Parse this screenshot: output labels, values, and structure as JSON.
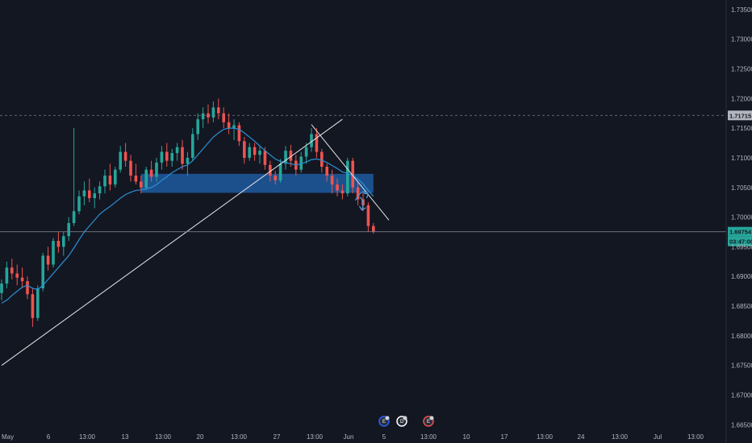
{
  "chart_data": {
    "type": "candlestick",
    "theme": {
      "background": "#131722",
      "up": "#26a69a",
      "down": "#ef5350",
      "ma": "#2c8fd6",
      "zone": "#1e5aa0",
      "trendline": "#e6e6e6",
      "arrow": "#5b9bd5",
      "axis_text": "#b2b5be",
      "refline": "#787b86",
      "price_tag": "#26a69a"
    },
    "ylim": [
      1.6645,
      1.7362
    ],
    "y_ticks": [
      "1.73500",
      "1.73000",
      "1.72500",
      "1.72000",
      "1.71500",
      "1.71000",
      "1.70500",
      "1.70000",
      "1.69500",
      "1.69000",
      "1.68500",
      "1.68000",
      "1.67500",
      "1.67000",
      "1.66500"
    ],
    "x_ticks": [
      "May",
      "6",
      "13:00",
      "13",
      "13:00",
      "20",
      "13:00",
      "27",
      "13:00",
      "Jun",
      "5",
      "13:00",
      "10",
      "17",
      "13:00",
      "24",
      "13:00",
      "Jul",
      "13:00"
    ],
    "reference_lines": [
      {
        "label": "1.71715",
        "value": 1.71715,
        "style": "dashed"
      },
      {
        "label": "1.69754",
        "value": 1.69754,
        "style": "solid"
      }
    ],
    "countdown": "03:47:00",
    "zone": {
      "low": 1.7041,
      "high": 1.7073,
      "from_bar": 27,
      "to_bar": 72
    },
    "trendlines": [
      {
        "from": [
          0,
          1.675
        ],
        "to": [
          66,
          1.7165
        ]
      },
      {
        "from": [
          60,
          1.7156
        ],
        "to": [
          75,
          1.6995
        ]
      }
    ],
    "event_markers": [
      "E",
      "D",
      "E"
    ],
    "candles": [
      [
        1.6872,
        1.6895,
        1.686,
        1.6888
      ],
      [
        1.6888,
        1.6925,
        1.688,
        1.6915
      ],
      [
        1.6915,
        1.693,
        1.6895,
        1.6905
      ],
      [
        1.6905,
        1.692,
        1.6885,
        1.6898
      ],
      [
        1.6898,
        1.6915,
        1.688,
        1.6892
      ],
      [
        1.6892,
        1.69,
        1.6862,
        1.687
      ],
      [
        1.687,
        1.688,
        1.6815,
        1.683
      ],
      [
        1.683,
        1.6885,
        1.6825,
        1.688
      ],
      [
        1.688,
        1.694,
        1.6875,
        1.6935
      ],
      [
        1.6935,
        1.695,
        1.691,
        1.692
      ],
      [
        1.692,
        1.6965,
        1.6915,
        1.696
      ],
      [
        1.696,
        1.6975,
        1.694,
        1.695
      ],
      [
        1.695,
        1.6975,
        1.6935,
        1.6968
      ],
      [
        1.6968,
        1.7,
        1.696,
        1.699
      ],
      [
        1.699,
        1.715,
        1.6985,
        1.701
      ],
      [
        1.701,
        1.7045,
        1.7005,
        1.7035
      ],
      [
        1.7035,
        1.706,
        1.702,
        1.7045
      ],
      [
        1.7045,
        1.7065,
        1.7025,
        1.7032
      ],
      [
        1.7032,
        1.705,
        1.7015,
        1.704
      ],
      [
        1.704,
        1.706,
        1.703,
        1.7052
      ],
      [
        1.7052,
        1.708,
        1.704,
        1.707
      ],
      [
        1.707,
        1.709,
        1.7045,
        1.7055
      ],
      [
        1.7055,
        1.7085,
        1.705,
        1.708
      ],
      [
        1.708,
        1.712,
        1.7075,
        1.711
      ],
      [
        1.711,
        1.7125,
        1.7085,
        1.7095
      ],
      [
        1.7095,
        1.7105,
        1.706,
        1.707
      ],
      [
        1.707,
        1.709,
        1.7055,
        1.706
      ],
      [
        1.706,
        1.707,
        1.704,
        1.705
      ],
      [
        1.705,
        1.7085,
        1.7045,
        1.708
      ],
      [
        1.708,
        1.7095,
        1.706,
        1.7068
      ],
      [
        1.7068,
        1.71,
        1.706,
        1.7092
      ],
      [
        1.7092,
        1.712,
        1.708,
        1.711
      ],
      [
        1.711,
        1.7125,
        1.7085,
        1.7095
      ],
      [
        1.7095,
        1.7115,
        1.7085,
        1.7108
      ],
      [
        1.7108,
        1.7125,
        1.7095,
        1.7118
      ],
      [
        1.7118,
        1.713,
        1.708,
        1.709
      ],
      [
        1.709,
        1.711,
        1.707,
        1.71
      ],
      [
        1.71,
        1.715,
        1.7095,
        1.714
      ],
      [
        1.714,
        1.7175,
        1.713,
        1.7165
      ],
      [
        1.7165,
        1.7185,
        1.715,
        1.7175
      ],
      [
        1.7175,
        1.719,
        1.7158,
        1.7168
      ],
      [
        1.7168,
        1.7195,
        1.716,
        1.7185
      ],
      [
        1.7185,
        1.72,
        1.7165,
        1.7175
      ],
      [
        1.7175,
        1.7185,
        1.715,
        1.716
      ],
      [
        1.716,
        1.7175,
        1.714,
        1.715
      ],
      [
        1.715,
        1.7165,
        1.713,
        1.7155
      ],
      [
        1.7155,
        1.716,
        1.712,
        1.7128
      ],
      [
        1.7128,
        1.7135,
        1.709,
        1.71
      ],
      [
        1.71,
        1.7125,
        1.7095,
        1.7118
      ],
      [
        1.7118,
        1.7125,
        1.7095,
        1.7105
      ],
      [
        1.7105,
        1.712,
        1.709,
        1.7112
      ],
      [
        1.7112,
        1.7118,
        1.708,
        1.7088
      ],
      [
        1.7088,
        1.7095,
        1.706,
        1.707
      ],
      [
        1.707,
        1.7078,
        1.7055,
        1.7062
      ],
      [
        1.7062,
        1.7098,
        1.7058,
        1.709
      ],
      [
        1.709,
        1.712,
        1.708,
        1.7112
      ],
      [
        1.7112,
        1.7122,
        1.7085,
        1.7095
      ],
      [
        1.7095,
        1.7105,
        1.707,
        1.708
      ],
      [
        1.708,
        1.711,
        1.7075,
        1.7102
      ],
      [
        1.7102,
        1.7125,
        1.709,
        1.7118
      ],
      [
        1.7118,
        1.715,
        1.711,
        1.714
      ],
      [
        1.714,
        1.715,
        1.71,
        1.711
      ],
      [
        1.711,
        1.7115,
        1.7075,
        1.7085
      ],
      [
        1.7085,
        1.709,
        1.706,
        1.707
      ],
      [
        1.707,
        1.708,
        1.704,
        1.7055
      ],
      [
        1.7055,
        1.7065,
        1.7035,
        1.7045
      ],
      [
        1.7045,
        1.7055,
        1.703,
        1.704
      ],
      [
        1.704,
        1.71,
        1.7035,
        1.7095
      ],
      [
        1.7095,
        1.71,
        1.704,
        1.705
      ],
      [
        1.705,
        1.706,
        1.702,
        1.703
      ],
      [
        1.703,
        1.704,
        1.701,
        1.702
      ],
      [
        1.702,
        1.7025,
        1.6975,
        1.6985
      ],
      [
        1.6985,
        1.699,
        1.6972,
        1.6975
      ]
    ],
    "ma_values": [
      1.6855,
      1.686,
      1.6868,
      1.6875,
      1.6882,
      1.6885,
      1.688,
      1.6878,
      1.6885,
      1.6895,
      1.6905,
      1.6915,
      1.6925,
      1.6935,
      1.6948,
      1.6962,
      1.6975,
      1.6985,
      1.6995,
      1.7005,
      1.7012,
      1.7018,
      1.7025,
      1.7032,
      1.7038,
      1.7042,
      1.7045,
      1.7046,
      1.7048,
      1.705,
      1.7055,
      1.7062,
      1.7068,
      1.7075,
      1.708,
      1.7085,
      1.7088,
      1.7095,
      1.7105,
      1.7115,
      1.7125,
      1.7135,
      1.7142,
      1.7148,
      1.715,
      1.715,
      1.7148,
      1.7142,
      1.7135,
      1.7128,
      1.712,
      1.7112,
      1.7105,
      1.7098,
      1.7094,
      1.7092,
      1.709,
      1.7088,
      1.709,
      1.7093,
      1.7097,
      1.7098,
      1.7096,
      1.7092,
      1.7087,
      1.7082,
      1.7076,
      1.7074,
      1.707,
      1.7064,
      1.7056,
      1.7045,
      1.7035
    ]
  }
}
